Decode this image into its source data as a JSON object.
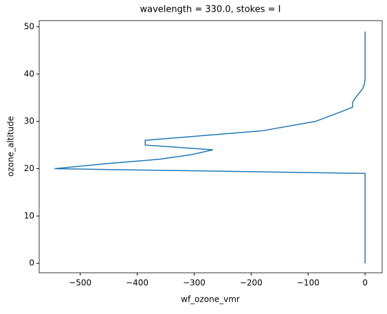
{
  "chart_data": {
    "type": "line",
    "title": "wavelength = 330.0, stokes = I",
    "x_label": "wf_ozone_vmr",
    "y_label": "ozone_altitude",
    "color": "#1f77b4",
    "x": [
      0,
      0,
      -545,
      -460,
      -361,
      -303,
      -267,
      -386,
      -386,
      -181,
      -87,
      -43,
      -22,
      -22,
      -17,
      -10,
      -4,
      -1,
      0,
      0
    ],
    "values": [
      0,
      19,
      20,
      21,
      22,
      23,
      24,
      25,
      26,
      28,
      30,
      32,
      33,
      34,
      35,
      36,
      37,
      38,
      39,
      49
    ],
    "xlim": [
      -572,
      30
    ],
    "ylim": [
      -2,
      51.3
    ],
    "xticks": [
      {
        "value": -500,
        "label": "−500"
      },
      {
        "value": -400,
        "label": "−400"
      },
      {
        "value": -300,
        "label": "−300"
      },
      {
        "value": -200,
        "label": "−200"
      },
      {
        "value": -100,
        "label": "−100"
      },
      0
    ],
    "yticks": [
      0,
      10,
      20,
      30,
      40,
      50
    ]
  }
}
